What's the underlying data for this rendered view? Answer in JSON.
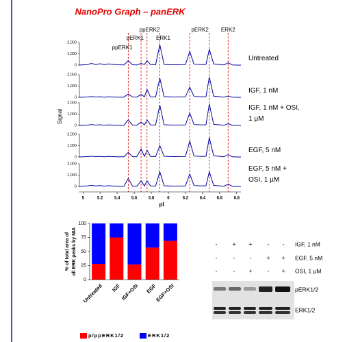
{
  "chart_data": [
    {
      "type": "line",
      "title": "NanoPro Graph – panERK",
      "xlabel": "pI",
      "ylabel": "Signal",
      "x": [
        4.95,
        5.05,
        5.1,
        5.15,
        5.2,
        5.25,
        5.3,
        5.4,
        5.48,
        5.53,
        5.58,
        5.63,
        5.68,
        5.72,
        5.75,
        5.79,
        5.85,
        5.9,
        5.95,
        6.05,
        6.2,
        6.25,
        6.3,
        6.4,
        6.44,
        6.48,
        6.53,
        6.65,
        6.7,
        6.75,
        6.8,
        6.85
      ],
      "xlim": [
        4.95,
        6.85
      ],
      "xticks": [
        5,
        5.2,
        5.4,
        5.6,
        5.8,
        6,
        6.2,
        6.4,
        6.6,
        6.8
      ],
      "ylim": [
        0,
        2000
      ],
      "yticks": [
        0,
        {
          "value": 1000,
          "label": "1,000"
        },
        {
          "value": 2000,
          "label": "2,000"
        }
      ],
      "reference_lines": [
        5.53,
        5.68,
        5.75,
        5.9,
        6.25,
        6.48,
        6.7
      ],
      "peak_labels": [
        {
          "text": "ppERK1",
          "x": 5.46
        },
        {
          "text": "pERK1",
          "x": 5.61
        },
        {
          "text": "ppERK2",
          "x": 5.78
        },
        {
          "text": "ERK1",
          "x": 5.94
        },
        {
          "text": "pERK2",
          "x": 6.37
        },
        {
          "text": "ERK2",
          "x": 6.7
        }
      ],
      "series": [
        {
          "name": "Untreated",
          "color": "#0000a0",
          "values": [
            0,
            50,
            150,
            50,
            120,
            40,
            100,
            30,
            20,
            400,
            30,
            20,
            150,
            50,
            400,
            40,
            30,
            1800,
            60,
            30,
            40,
            1200,
            80,
            40,
            60,
            1400,
            100,
            20,
            200,
            20,
            0,
            0
          ]
        },
        {
          "name": "IGF, 1 nM",
          "color": "#0000a0",
          "values": [
            0,
            30,
            60,
            30,
            50,
            20,
            40,
            20,
            20,
            300,
            30,
            20,
            250,
            50,
            700,
            40,
            30,
            1700,
            60,
            30,
            40,
            900,
            80,
            40,
            60,
            1800,
            100,
            20,
            100,
            20,
            0,
            0
          ]
        },
        {
          "name": "IGF, 1 nM + OSI, 1 µM",
          "color": "#0000a0",
          "values": [
            0,
            30,
            80,
            30,
            60,
            20,
            50,
            20,
            20,
            500,
            30,
            20,
            300,
            50,
            500,
            40,
            30,
            1800,
            60,
            30,
            40,
            1100,
            80,
            40,
            60,
            1900,
            100,
            20,
            150,
            20,
            0,
            0
          ]
        },
        {
          "name": "EGF, 5 nM",
          "color": "#0000a0",
          "values": [
            0,
            30,
            60,
            30,
            50,
            20,
            40,
            20,
            20,
            400,
            30,
            20,
            700,
            50,
            600,
            40,
            30,
            1000,
            60,
            30,
            40,
            1400,
            80,
            40,
            60,
            1700,
            100,
            20,
            200,
            20,
            0,
            0
          ]
        },
        {
          "name": "EGF, 5 nM + OSI, 1 µM",
          "color": "#0000a0",
          "values": [
            0,
            40,
            100,
            40,
            80,
            30,
            60,
            20,
            20,
            700,
            30,
            20,
            500,
            50,
            500,
            40,
            30,
            1300,
            60,
            30,
            40,
            1100,
            80,
            40,
            60,
            1300,
            100,
            20,
            200,
            20,
            0,
            0
          ]
        }
      ]
    },
    {
      "type": "stacked_bar",
      "ylabel": [
        "% of total area of",
        "all ERK peaks by NIA"
      ],
      "categories": [
        "Untreated",
        "IGF",
        "IGF+OSI",
        "EGF",
        "EGF+OSI"
      ],
      "ylim": [
        0,
        100
      ],
      "yticks": [
        0,
        25,
        50,
        75,
        100
      ],
      "series": [
        {
          "name": "p/ppERK1/2",
          "color": "#ff0000",
          "values": [
            28,
            75,
            27,
            57,
            69
          ]
        },
        {
          "name": "ERK1/2",
          "color": "#0000ff",
          "values": [
            72,
            25,
            73,
            43,
            31
          ]
        }
      ]
    }
  ],
  "blot": {
    "treatments": [
      {
        "signs": [
          "-",
          "+",
          "+",
          "-",
          "-"
        ],
        "label": "IGF, 1 nM"
      },
      {
        "signs": [
          "-",
          "-",
          "-",
          "+",
          "+"
        ],
        "label": "EGF, 5 nM"
      },
      {
        "signs": [
          "-",
          "-",
          "+",
          "-",
          "+"
        ],
        "label": "OSI, 1 µM"
      }
    ],
    "bands": [
      "pERK1/2",
      "ERK1/2"
    ]
  }
}
